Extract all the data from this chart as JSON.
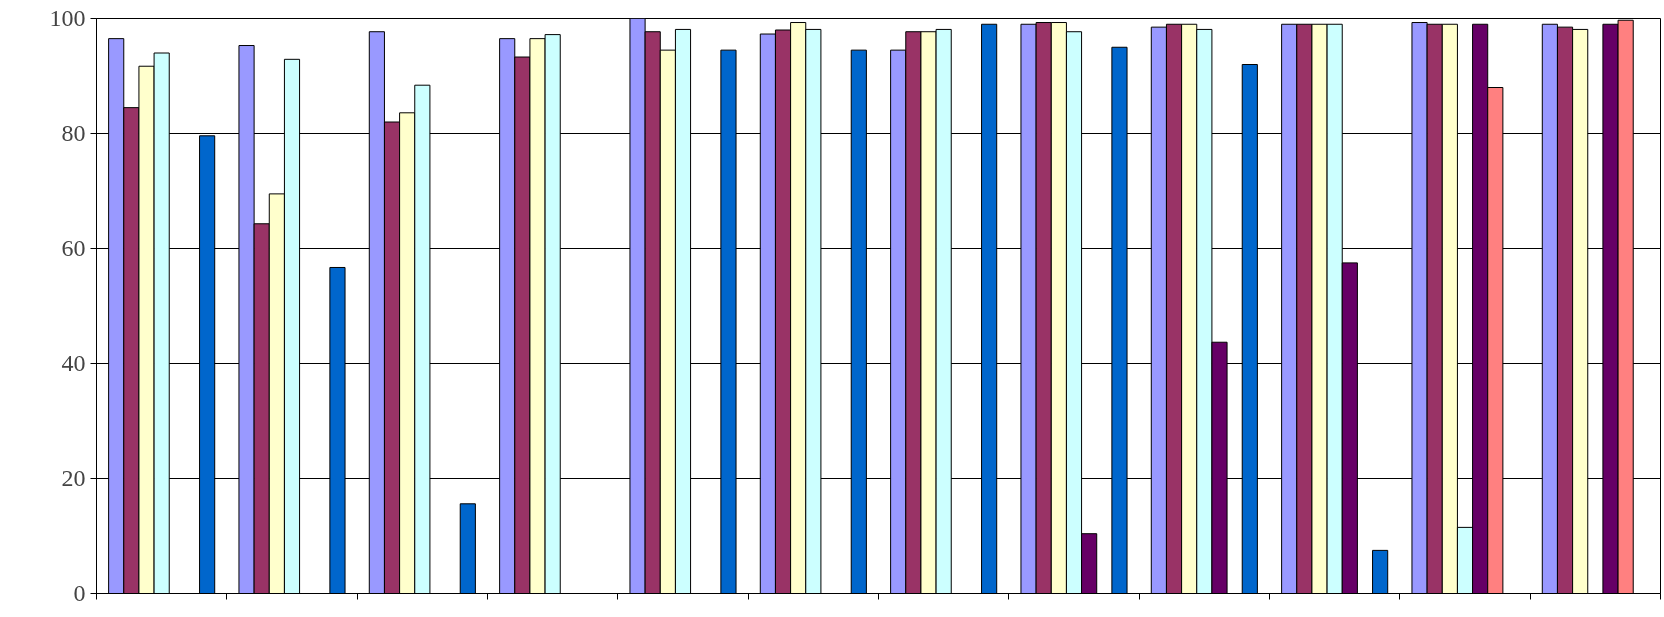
{
  "chart_data": {
    "type": "bar",
    "categories": [
      null,
      null,
      null,
      null,
      null,
      null,
      null,
      null,
      null,
      null,
      null,
      null
    ],
    "series": [
      {
        "color": "#9999ff",
        "values": [
          96.5,
          95.3,
          97.7,
          96.5,
          100,
          97.3,
          94.5,
          99,
          98.5,
          99,
          99.3,
          99
        ]
      },
      {
        "color": "#993366",
        "values": [
          84.5,
          64.3,
          82,
          93.3,
          97.7,
          98,
          97.7,
          99.3,
          99,
          99,
          99,
          98.5
        ]
      },
      {
        "color": "#ffffcc",
        "values": [
          91.7,
          69.5,
          83.6,
          96.5,
          94.5,
          99.3,
          97.7,
          99.3,
          99,
          99,
          99,
          98.1
        ]
      },
      {
        "color": "#ccffff",
        "values": [
          94,
          92.9,
          88.4,
          97.2,
          98.1,
          98.1,
          98.1,
          97.7,
          98.1,
          99,
          11.5,
          null
        ]
      },
      {
        "color": "#660066",
        "values": [
          null,
          null,
          null,
          null,
          null,
          null,
          null,
          10.4,
          43.7,
          57.5,
          99,
          99
        ]
      },
      {
        "color": "#ff8080",
        "values": [
          null,
          null,
          null,
          null,
          null,
          null,
          null,
          null,
          null,
          null,
          88,
          99.7
        ]
      },
      {
        "color": "#0066cc",
        "values": [
          79.6,
          56.7,
          15.6,
          null,
          94.5,
          94.5,
          99,
          95,
          92,
          7.5,
          null,
          null
        ]
      }
    ],
    "ylim": [
      0,
      100
    ],
    "yticks": [
      0,
      20,
      40,
      60,
      80,
      100
    ],
    "grid": "y",
    "tick_labels": "y"
  }
}
